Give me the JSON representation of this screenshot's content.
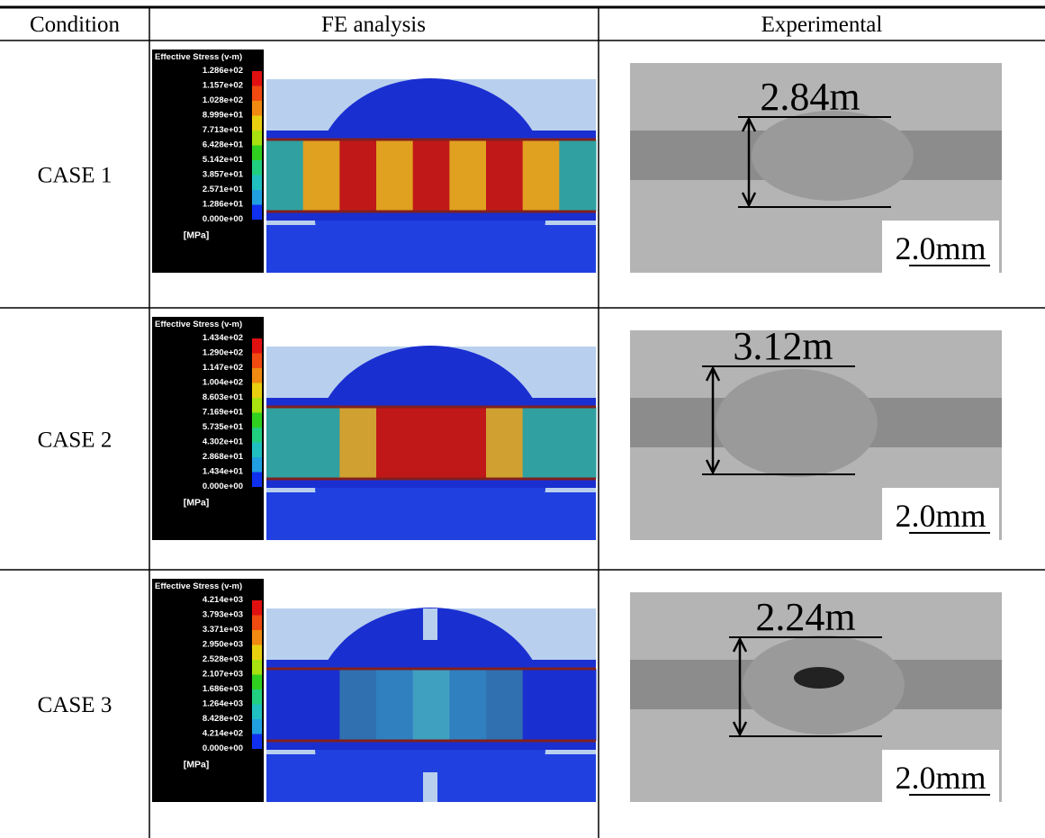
{
  "header": {
    "columns": [
      "Condition",
      "FE analysis",
      "Experimental"
    ]
  },
  "rows": [
    {
      "condition": "CASE 1",
      "legend": {
        "title": "Effective Stress (v-m)",
        "values": [
          "1.286e+02",
          "1.157e+02",
          "1.028e+02",
          "8.999e+01",
          "7.713e+01",
          "6.428e+01",
          "5.142e+01",
          "3.857e+01",
          "2.571e+01",
          "1.286e+01",
          "0.000e+00"
        ],
        "unit": "[MPa]"
      },
      "dimension": "2.84m",
      "scale": "2.0mm"
    },
    {
      "condition": "CASE 2",
      "legend": {
        "title": "Effective Stress (v-m)",
        "values": [
          "1.434e+02",
          "1.290e+02",
          "1.147e+02",
          "1.004e+02",
          "8.603e+01",
          "7.169e+01",
          "5.735e+01",
          "4.302e+01",
          "2.868e+01",
          "1.434e+01",
          "0.000e+00"
        ],
        "unit": "[MPa]"
      },
      "dimension": "3.12m",
      "scale": "2.0mm"
    },
    {
      "condition": "CASE 3",
      "legend": {
        "title": "Effective Stress (v-m)",
        "values": [
          "4.214e+03",
          "3.793e+03",
          "3.371e+03",
          "2.950e+03",
          "2.528e+03",
          "2.107e+03",
          "1.686e+03",
          "1.264e+03",
          "8.428e+02",
          "4.214e+02",
          "0.000e+00"
        ],
        "unit": "[MPa]"
      },
      "dimension": "2.24m",
      "scale": "2.0mm"
    }
  ]
}
